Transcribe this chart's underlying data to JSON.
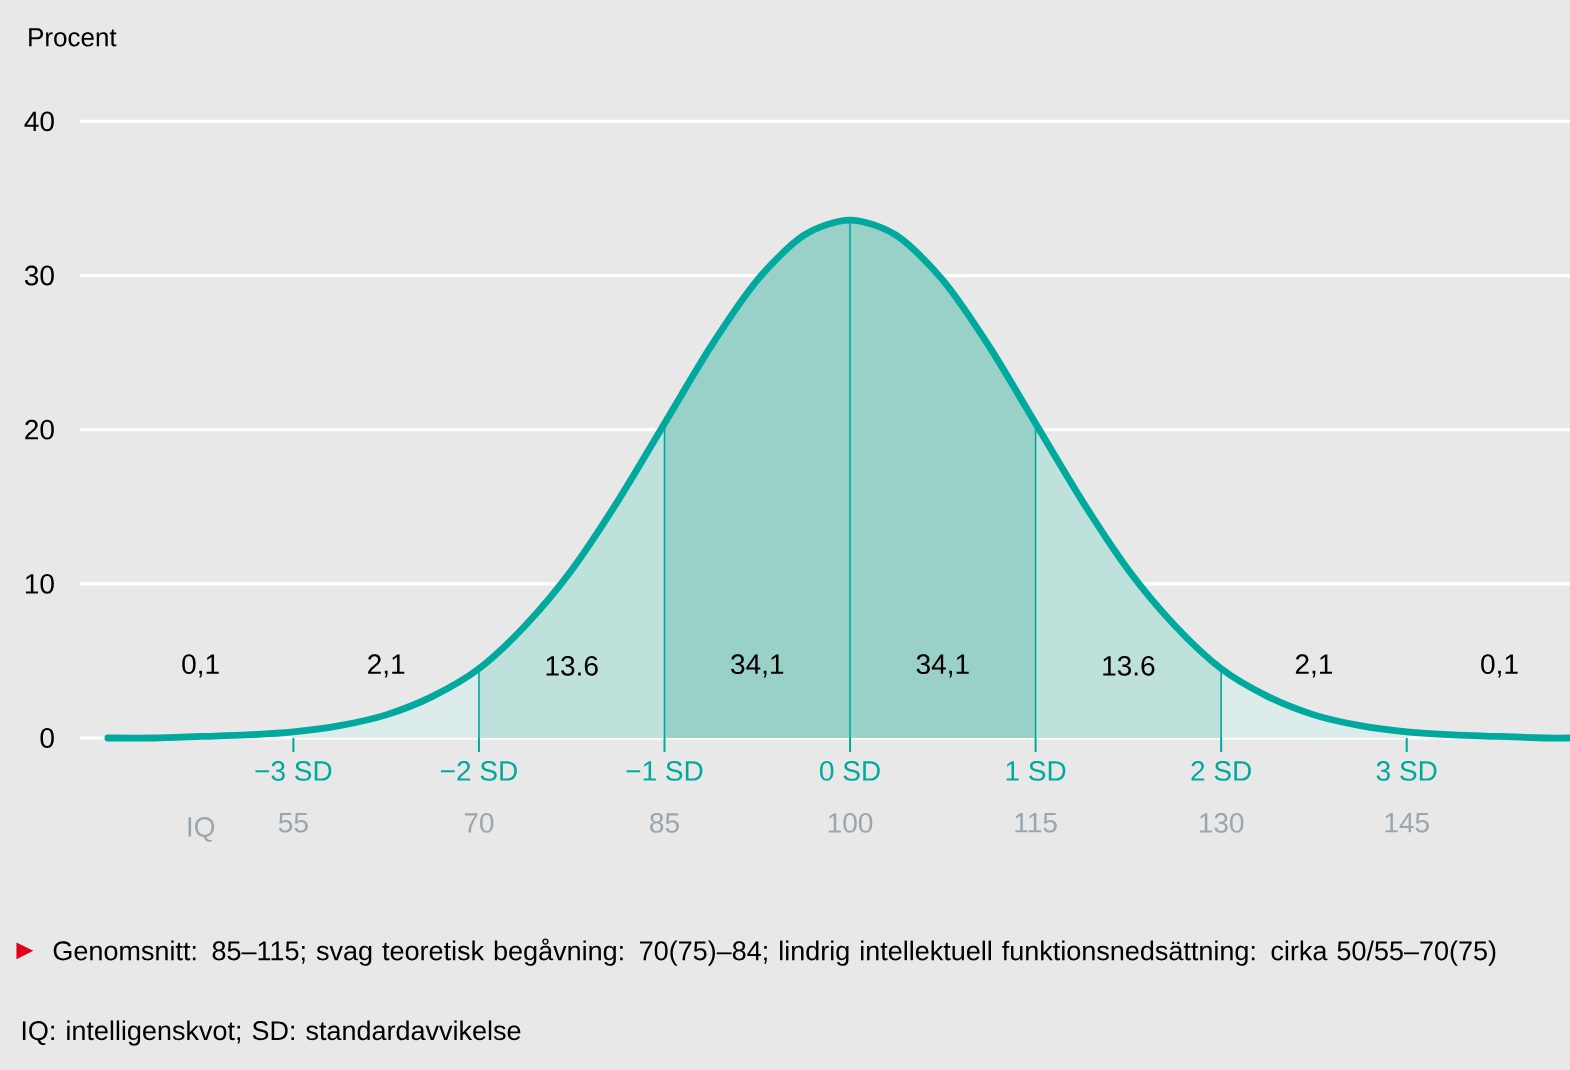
{
  "chart_data": {
    "type": "line",
    "ylabel": "Procent",
    "x2label": "IQ",
    "xlim": [
      -4.15,
      3.88
    ],
    "ylim": [
      0,
      40
    ],
    "yticks": [
      0,
      10,
      20,
      30,
      40
    ],
    "grid": "y",
    "xticks": [
      {
        "value": -3,
        "label": "−3 SD"
      },
      {
        "value": -2,
        "label": "−2 SD"
      },
      {
        "value": -1,
        "label": "−1 SD"
      },
      {
        "value": 0,
        "label": "0 SD"
      },
      {
        "value": 1,
        "label": "1 SD"
      },
      {
        "value": 2,
        "label": "2 SD"
      },
      {
        "value": 3,
        "label": "3 SD"
      }
    ],
    "x2lim": [
      37.75,
      158.2
    ],
    "x2ticks": [
      55,
      70,
      85,
      100,
      115,
      130,
      145
    ],
    "series": [
      {
        "type": "area",
        "color": "#dcecea",
        "x": [
          -3,
          -2.75,
          -2.5,
          -2.25,
          -2
        ],
        "values": [
          0.4,
          0.8,
          1.5,
          2.7,
          4.5
        ]
      },
      {
        "type": "area",
        "color": "#bfe1db",
        "x": [
          -2,
          -1.75,
          -1.5,
          -1.25,
          -1
        ],
        "values": [
          4.5,
          7.3,
          10.9,
          15.4,
          20.4
        ]
      },
      {
        "type": "area",
        "color": "#99d0c8",
        "x": [
          -1,
          -0.75,
          -0.5,
          -0.25,
          0,
          0.25,
          0.5,
          0.75,
          1
        ],
        "values": [
          20.4,
          25.4,
          29.7,
          32.6,
          33.6,
          32.6,
          29.7,
          25.4,
          20.4
        ]
      },
      {
        "type": "area",
        "color": "#bfe1db",
        "x": [
          1,
          1.25,
          1.5,
          1.75,
          2
        ],
        "values": [
          20.4,
          15.4,
          10.9,
          7.3,
          4.5
        ]
      },
      {
        "type": "area",
        "color": "#dcecea",
        "x": [
          2,
          2.25,
          2.5,
          2.75,
          3
        ],
        "values": [
          4.5,
          2.7,
          1.5,
          0.8,
          0.4
        ]
      },
      {
        "color": "#00a99d",
        "x": [
          -4,
          -3.75,
          -3.5,
          -3.25,
          -3,
          -2.75,
          -2.5,
          -2.25,
          -2,
          -1.75,
          -1.5,
          -1.25,
          -1,
          -0.75,
          -0.5,
          -0.25,
          0,
          0.25,
          0.5,
          0.75,
          1,
          1.25,
          1.5,
          1.75,
          2,
          2.25,
          2.5,
          2.75,
          3,
          3.25,
          3.5,
          3.75,
          3.88
        ],
        "values": [
          0,
          0,
          0.1,
          0.2,
          0.4,
          0.8,
          1.5,
          2.7,
          4.5,
          7.3,
          10.9,
          15.4,
          20.4,
          25.4,
          29.7,
          32.6,
          33.6,
          32.6,
          29.7,
          25.4,
          20.4,
          15.4,
          10.9,
          7.3,
          4.5,
          2.7,
          1.5,
          0.8,
          0.4,
          0.2,
          0.1,
          0,
          0
        ]
      }
    ],
    "ref_lines": [
      {
        "axis": "x",
        "value": -2,
        "color": "#00a99d"
      },
      {
        "axis": "x",
        "value": -1,
        "color": "#00a99d"
      },
      {
        "axis": "x",
        "value": 0,
        "color": "#00a99d"
      },
      {
        "axis": "x",
        "value": 1,
        "color": "#00a99d"
      },
      {
        "axis": "x",
        "value": 2,
        "color": "#00a99d"
      }
    ],
    "annotations": [
      "0,1",
      "2,1",
      "13.6",
      "34,1",
      "34,1",
      "13.6",
      "2,1",
      "0,1",
      "▶",
      "Genomsnitt: 85–115; svag teoretisk begåvning: 70(75)–84; lindrig intellektuell funktionsnedsättning: cirka 50/55–70(75)",
      "IQ: intelligenskvot; SD: standardavvikelse"
    ]
  }
}
